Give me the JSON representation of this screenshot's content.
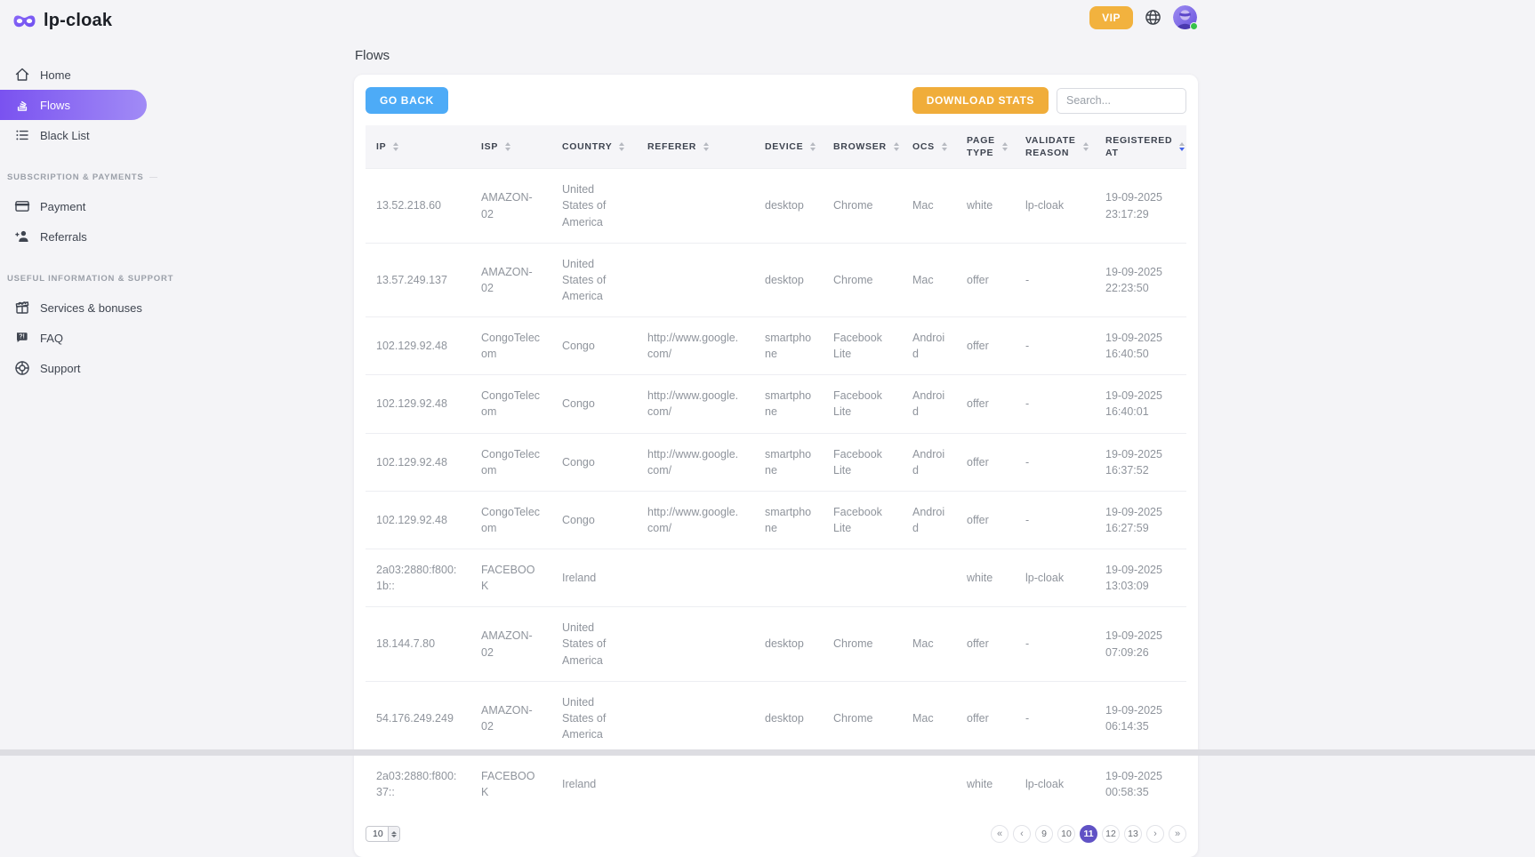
{
  "brand": {
    "name": "lp-cloak"
  },
  "topbar": {
    "vip_label": "VIP",
    "icons": [
      "globe-icon",
      "avatar"
    ]
  },
  "sidebar": {
    "sections": [
      {
        "label": "",
        "items": [
          {
            "label": "Home",
            "icon": "home-icon",
            "active": false
          },
          {
            "label": "Flows",
            "icon": "flows-icon",
            "active": true
          },
          {
            "label": "Black List",
            "icon": "black-list-icon",
            "active": false
          }
        ]
      },
      {
        "label": "SUBSCRIPTION & PAYMENTS",
        "items": [
          {
            "label": "Payment",
            "icon": "payment-icon",
            "active": false
          },
          {
            "label": "Referrals",
            "icon": "referrals-icon",
            "active": false
          }
        ]
      },
      {
        "label": "USEFUL INFORMATION & SUPPORT",
        "items": [
          {
            "label": "Services & bonuses",
            "icon": "gift-icon",
            "active": false
          },
          {
            "label": "FAQ",
            "icon": "faq-icon",
            "active": false
          },
          {
            "label": "Support",
            "icon": "support-icon",
            "active": false
          }
        ]
      }
    ]
  },
  "page": {
    "title": "Flows"
  },
  "toolbar": {
    "go_back": "GO BACK",
    "download_stats": "DOWNLOAD STATS",
    "search_placeholder": "Search...",
    "search_value": ""
  },
  "table": {
    "columns": [
      {
        "key": "ip",
        "label": "IP",
        "sort": "none"
      },
      {
        "key": "isp",
        "label": "ISP",
        "sort": "none"
      },
      {
        "key": "country",
        "label": "COUNTRY",
        "sort": "none"
      },
      {
        "key": "referer",
        "label": "REFERER",
        "sort": "none"
      },
      {
        "key": "device",
        "label": "DEVICE",
        "sort": "none"
      },
      {
        "key": "browser",
        "label": "BROWSER",
        "sort": "none"
      },
      {
        "key": "ocs",
        "label": "OCS",
        "sort": "none"
      },
      {
        "key": "page_type",
        "label": "PAGE TYPE",
        "sort": "none"
      },
      {
        "key": "validate_reason",
        "label": "VALIDATE REASON",
        "sort": "none"
      },
      {
        "key": "registered_at",
        "label": "REGISTERED AT",
        "sort": "desc"
      }
    ],
    "rows": [
      [
        "13.52.218.60",
        "AMAZON-02",
        "United States of America",
        "",
        "desktop",
        "Chrome",
        "Mac",
        "white",
        "lp-cloak",
        "19-09-2025 23:17:29"
      ],
      [
        "13.57.249.137",
        "AMAZON-02",
        "United States of America",
        "",
        "desktop",
        "Chrome",
        "Mac",
        "offer",
        "-",
        "19-09-2025 22:23:50"
      ],
      [
        "102.129.92.48",
        "CongoTelecom",
        "Congo",
        "http://www.google.com/",
        "smartphone",
        "Facebook Lite",
        "Android",
        "offer",
        "-",
        "19-09-2025 16:40:50"
      ],
      [
        "102.129.92.48",
        "CongoTelecom",
        "Congo",
        "http://www.google.com/",
        "smartphone",
        "Facebook Lite",
        "Android",
        "offer",
        "-",
        "19-09-2025 16:40:01"
      ],
      [
        "102.129.92.48",
        "CongoTelecom",
        "Congo",
        "http://www.google.com/",
        "smartphone",
        "Facebook Lite",
        "Android",
        "offer",
        "-",
        "19-09-2025 16:37:52"
      ],
      [
        "102.129.92.48",
        "CongoTelecom",
        "Congo",
        "http://www.google.com/",
        "smartphone",
        "Facebook Lite",
        "Android",
        "offer",
        "-",
        "19-09-2025 16:27:59"
      ],
      [
        "2a03:2880:f800:1b::",
        "FACEBOOK",
        "Ireland",
        "",
        "",
        "",
        "",
        "white",
        "lp-cloak",
        "19-09-2025 13:03:09"
      ],
      [
        "18.144.7.80",
        "AMAZON-02",
        "United States of America",
        "",
        "desktop",
        "Chrome",
        "Mac",
        "offer",
        "-",
        "19-09-2025 07:09:26"
      ],
      [
        "54.176.249.249",
        "AMAZON-02",
        "United States of America",
        "",
        "desktop",
        "Chrome",
        "Mac",
        "offer",
        "-",
        "19-09-2025 06:14:35"
      ],
      [
        "2a03:2880:f800:37::",
        "FACEBOOK",
        "Ireland",
        "",
        "",
        "",
        "",
        "white",
        "lp-cloak",
        "19-09-2025 00:58:35"
      ]
    ]
  },
  "pagination": {
    "page_size": "10",
    "controls": {
      "first": "«",
      "prev": "‹",
      "next": "›",
      "last": "»"
    },
    "pages": [
      "9",
      "10",
      "11",
      "12",
      "13"
    ],
    "active_page": "11"
  },
  "colors": {
    "accent_purple": "#7a52f0",
    "accent_purple_light": "#a18bf6",
    "vip_orange": "#f2b23e",
    "go_back_blue": "#4dabf7",
    "download_orange": "#f0ad3a",
    "active_page_purple": "#6052c5",
    "sort_active_blue": "#4263eb",
    "online_green": "#37c24a"
  }
}
